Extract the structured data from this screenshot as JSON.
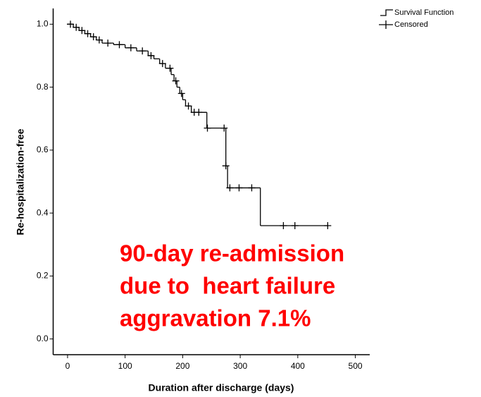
{
  "chart_data": {
    "type": "step",
    "x_label": "Duration after discharge (days)",
    "y_label": "Re-hospitalization-free",
    "xlim": [
      -25,
      525
    ],
    "ylim": [
      -0.05,
      1.05
    ],
    "xticks": [
      0,
      100,
      200,
      300,
      400,
      500
    ],
    "yticks": [
      {
        "value": 0,
        "label": "0.0"
      },
      0.2,
      0.4,
      0.6,
      0.8,
      {
        "value": 1,
        "label": "1.0"
      }
    ],
    "legend": "top-right",
    "series": [
      {
        "name": "Survival Function",
        "color": "#000000",
        "x": [
          0,
          10,
          20,
          30,
          40,
          50,
          60,
          80,
          100,
          120,
          140,
          150,
          160,
          170,
          180,
          185,
          190,
          195,
          200,
          205,
          215,
          242,
          275,
          278,
          335,
          452
        ],
        "values": [
          1.0,
          0.99,
          0.98,
          0.97,
          0.96,
          0.95,
          0.94,
          0.935,
          0.925,
          0.915,
          0.9,
          0.89,
          0.875,
          0.86,
          0.84,
          0.82,
          0.8,
          0.78,
          0.76,
          0.74,
          0.72,
          0.67,
          0.55,
          0.48,
          0.36,
          0.36
        ]
      },
      {
        "name": "Censored",
        "color": "#000000",
        "x": [
          5,
          15,
          25,
          35,
          45,
          55,
          70,
          90,
          110,
          130,
          145,
          165,
          178,
          188,
          198,
          210,
          220,
          228,
          243,
          272,
          275,
          282,
          298,
          320,
          375,
          395,
          452
        ],
        "values": [
          1.0,
          0.99,
          0.98,
          0.97,
          0.96,
          0.95,
          0.94,
          0.935,
          0.925,
          0.915,
          0.9,
          0.875,
          0.86,
          0.82,
          0.78,
          0.74,
          0.72,
          0.72,
          0.67,
          0.67,
          0.55,
          0.48,
          0.48,
          0.48,
          0.36,
          0.36,
          0.36
        ]
      }
    ],
    "annotation": {
      "color": "#ff0000",
      "lines": [
        "90-day re-admission",
        "due to  heart failure",
        "aggravation 7.1%"
      ]
    }
  }
}
